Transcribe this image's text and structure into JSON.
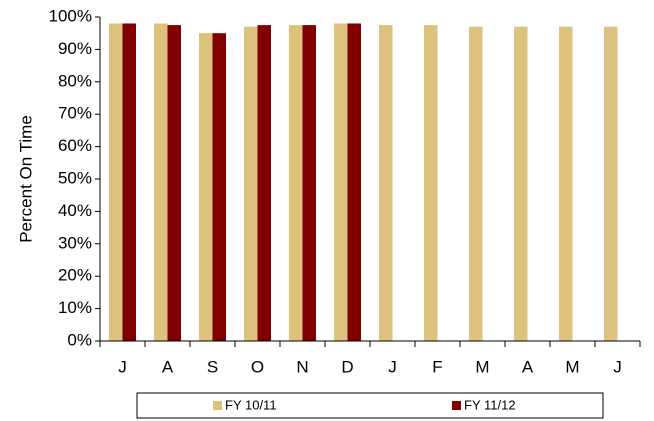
{
  "chart_data": {
    "type": "bar",
    "y_label": "Percent On Time",
    "categories": [
      "J",
      "A",
      "S",
      "O",
      "N",
      "D",
      "J",
      "F",
      "M",
      "A",
      "M",
      "J"
    ],
    "series": [
      {
        "name": "FY 10/11",
        "color": "#dcc27c",
        "values": [
          98,
          98,
          95,
          97,
          97.5,
          98,
          97.5,
          97.5,
          97,
          97,
          97,
          97
        ]
      },
      {
        "name": "FY 11/12",
        "color": "#800000",
        "values": [
          98,
          97.5,
          95,
          97.5,
          97.5,
          98,
          null,
          null,
          null,
          null,
          null,
          null
        ]
      }
    ],
    "ylim": [
      0,
      100
    ],
    "yticks": [
      {
        "value": 0,
        "label": "0%"
      },
      {
        "value": 10,
        "label": "10%"
      },
      {
        "value": 20,
        "label": "20%"
      },
      {
        "value": 30,
        "label": "30%"
      },
      {
        "value": 40,
        "label": "40%"
      },
      {
        "value": 50,
        "label": "50%"
      },
      {
        "value": 60,
        "label": "60%"
      },
      {
        "value": 70,
        "label": "70%"
      },
      {
        "value": 80,
        "label": "80%"
      },
      {
        "value": 90,
        "label": "90%"
      },
      {
        "value": 100,
        "label": "100%"
      }
    ],
    "grid": false,
    "legend": "bottom"
  }
}
